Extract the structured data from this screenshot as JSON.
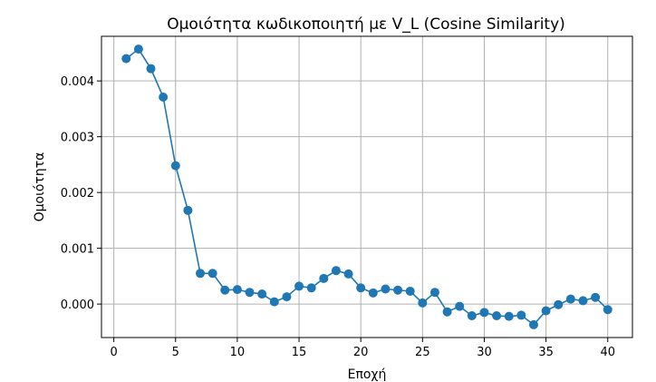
{
  "chart_data": {
    "type": "line",
    "title": "Ομοιότητα κωδικοποιητή με V_L (Cosine Similarity)",
    "xlabel": "Εποχή",
    "ylabel": "Ομοιότητα",
    "xlim": [
      -1,
      42
    ],
    "ylim": [
      -0.0006,
      0.0048
    ],
    "xticks": [
      0,
      5,
      10,
      15,
      20,
      25,
      30,
      35,
      40
    ],
    "yticks": [
      0.0,
      0.001,
      0.002,
      0.003,
      0.004
    ],
    "ytick_labels": [
      "0.000",
      "0.001",
      "0.002",
      "0.003",
      "0.004"
    ],
    "grid": true,
    "series": [
      {
        "color": "#1f77b4",
        "marker": "circle",
        "x": [
          1,
          2,
          3,
          4,
          5,
          6,
          7,
          8,
          9,
          10,
          11,
          12,
          13,
          14,
          15,
          16,
          17,
          18,
          19,
          20,
          21,
          22,
          23,
          24,
          25,
          26,
          27,
          28,
          29,
          30,
          31,
          32,
          33,
          34,
          35,
          36,
          37,
          38,
          39,
          40
        ],
        "y": [
          0.0044,
          0.00457,
          0.00422,
          0.00371,
          0.00248,
          0.00168,
          0.00055,
          0.00055,
          0.00025,
          0.00026,
          0.00021,
          0.00018,
          4e-05,
          0.00013,
          0.00032,
          0.00029,
          0.00046,
          0.0006,
          0.00054,
          0.00029,
          0.0002,
          0.00027,
          0.00025,
          0.00023,
          2e-05,
          0.00021,
          -0.00014,
          -4e-05,
          -0.00021,
          -0.00015,
          -0.00021,
          -0.00022,
          -0.0002,
          -0.00037,
          -0.00012,
          -1e-05,
          9e-05,
          6e-05,
          0.00012,
          -0.0001
        ]
      }
    ]
  }
}
